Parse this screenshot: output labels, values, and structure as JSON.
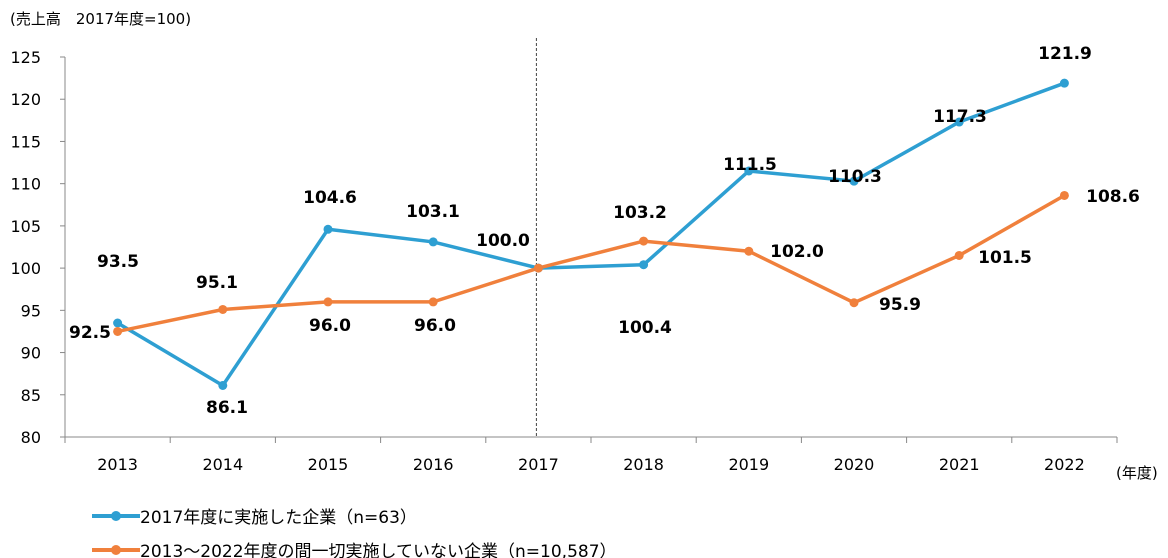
{
  "chart_data": {
    "type": "line",
    "ylabel": "(売上高　2017年度=100)",
    "xunit": "(年度)",
    "categories": [
      "2013",
      "2014",
      "2015",
      "2016",
      "2017",
      "2018",
      "2019",
      "2020",
      "2021",
      "2022"
    ],
    "ylim": [
      80,
      125
    ],
    "yticks": [
      80,
      85,
      90,
      95,
      100,
      105,
      110,
      115,
      120,
      125
    ],
    "grid": false,
    "reference_line": "2017",
    "legend_position": "bottom-left",
    "series": [
      {
        "name": "2017年度に実施した企業（n=63）",
        "color": "#2E9FD2",
        "values": [
          93.5,
          86.1,
          104.6,
          103.1,
          100.0,
          100.4,
          111.5,
          110.3,
          117.3,
          121.9
        ],
        "labels": [
          "93.5",
          "86.1",
          "104.6",
          "103.1",
          "100.0",
          "100.4",
          "111.5",
          "110.3",
          "117.3",
          "121.9"
        ]
      },
      {
        "name": "2013～2022年度の間一切実施していない企業（n=10,587）",
        "color": "#F0803C",
        "values": [
          92.5,
          95.1,
          96.0,
          96.0,
          100.0,
          103.2,
          102.0,
          95.9,
          101.5,
          108.6
        ],
        "labels": [
          "92.5",
          "95.1",
          "96.0",
          "96.0",
          "",
          "103.2",
          "102.0",
          "95.9",
          "101.5",
          "108.6"
        ]
      }
    ]
  }
}
